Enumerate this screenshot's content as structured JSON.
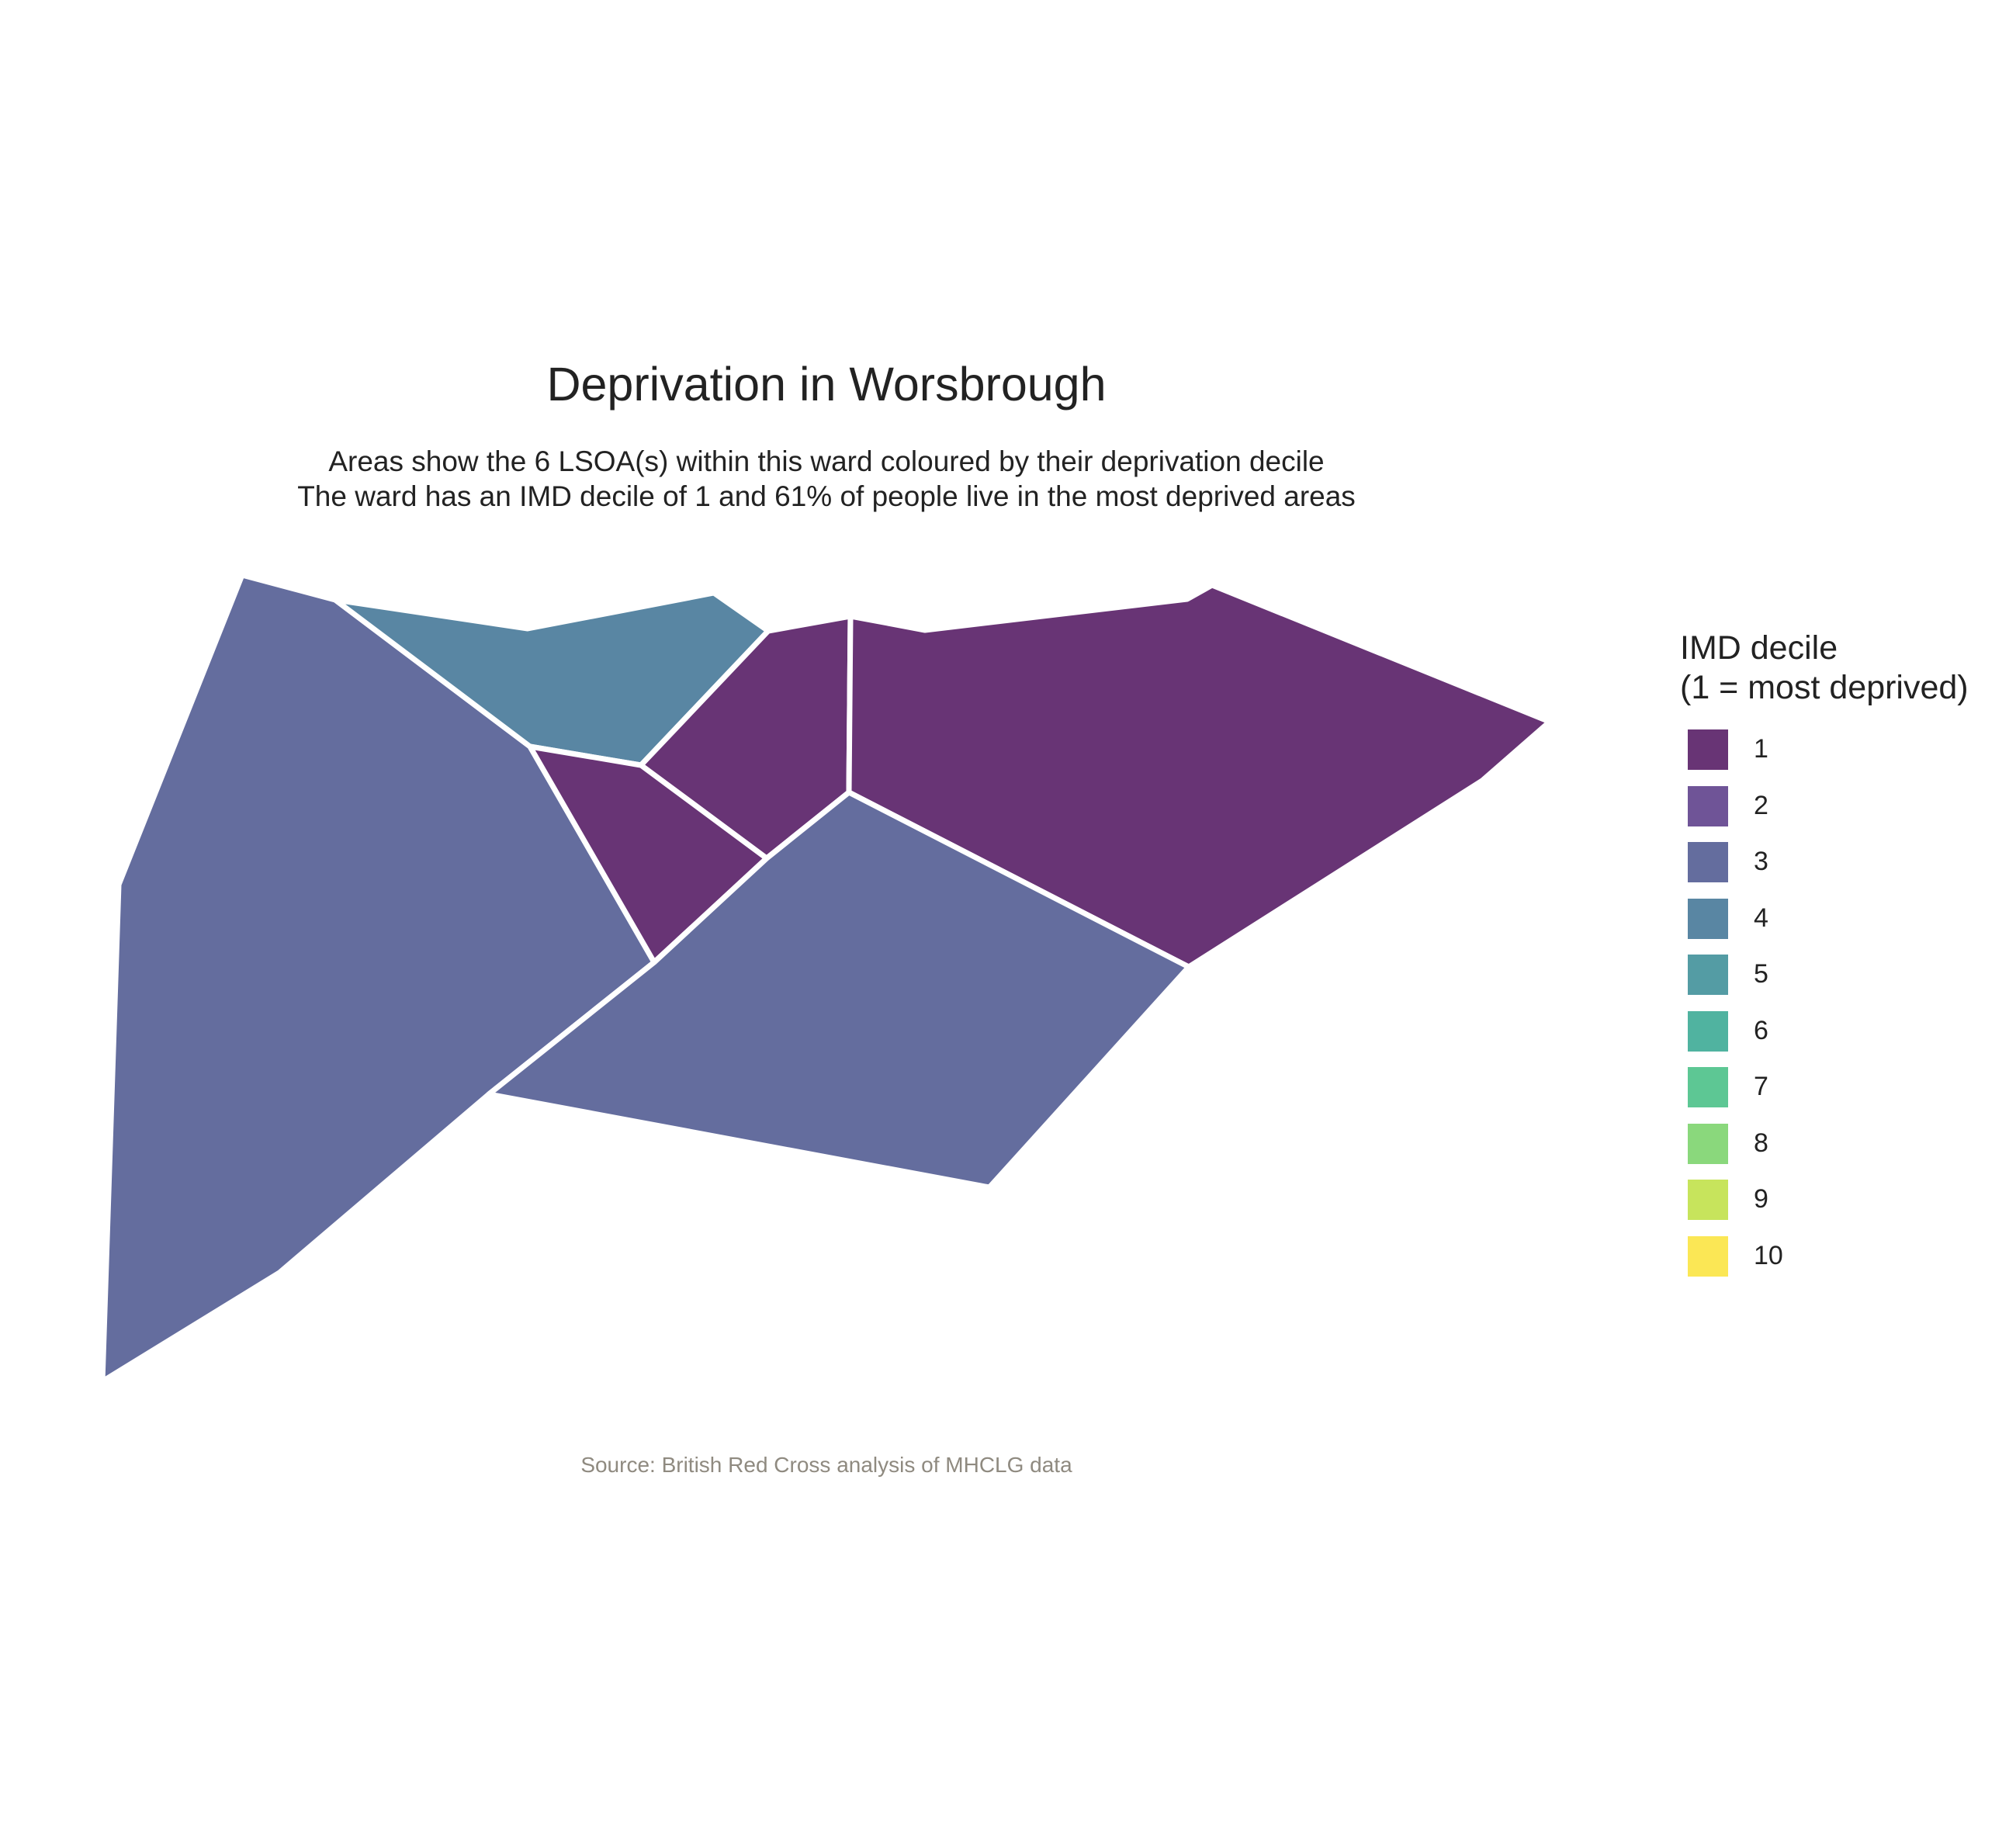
{
  "title": "Deprivation in Worsbrough",
  "subtitle": [
    "Areas show the 6 LSOA(s) within this ward coloured by their deprivation decile",
    "The ward has an IMD decile of 1 and 61% of people live in the most deprived areas"
  ],
  "source": "Source: British Red Cross analysis of MHCLG data",
  "legend": {
    "title_lines": [
      "IMD decile",
      "(1 = most deprived)"
    ],
    "items": [
      {
        "label": "1",
        "color": "#683475"
      },
      {
        "label": "2",
        "color": "#6f5497"
      },
      {
        "label": "3",
        "color": "#646d9e"
      },
      {
        "label": "4",
        "color": "#5986a3"
      },
      {
        "label": "5",
        "color": "#549ca4"
      },
      {
        "label": "6",
        "color": "#50b3a0"
      },
      {
        "label": "7",
        "color": "#5dc794"
      },
      {
        "label": "8",
        "color": "#8ad87c"
      },
      {
        "label": "9",
        "color": "#c7e45c"
      },
      {
        "label": "10",
        "color": "#fbe755"
      }
    ]
  },
  "areas": [
    {
      "decile": 3
    },
    {
      "decile": 4
    },
    {
      "decile": 1
    },
    {
      "decile": 1
    },
    {
      "decile": 1
    },
    {
      "decile": 3
    }
  ]
}
